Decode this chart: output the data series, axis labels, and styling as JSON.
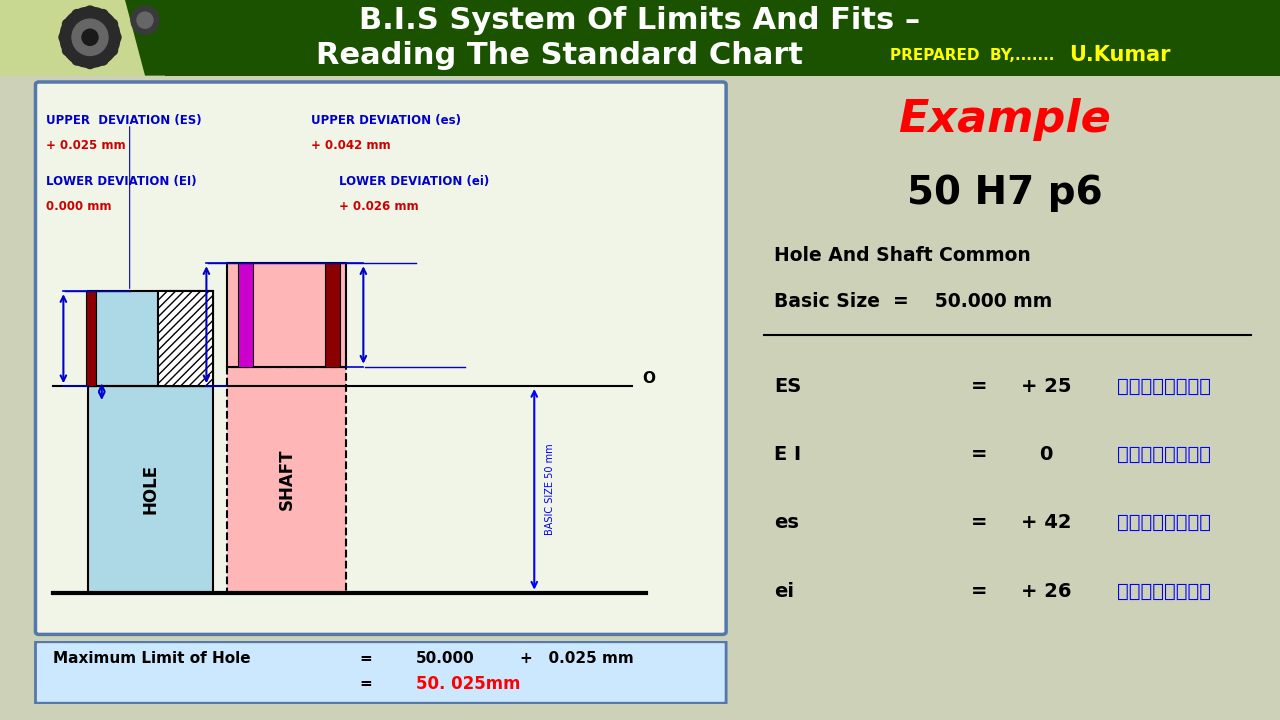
{
  "title_line1": "B.I.S System Of Limits And Fits –",
  "title_line2": "Reading The Standard Chart",
  "prepared_by": "PREPARED  BY,.......",
  "author": "U.Kumar",
  "bg_color": "#cdd1b8",
  "header_bg": "#1a5200",
  "header_light_bg": "#c8d890",
  "header_text_color": "#ffffff",
  "prepared_color": "#ffff00",
  "author_color": "#ffff00",
  "example_title": "Example",
  "example_subtitle": "50 H7 p6",
  "hole_shaft_text": "Hole And Shaft Common",
  "basic_size_text": "Basic Size  =    50.000 mm",
  "rows": [
    {
      "label": "ES",
      "eq": "=",
      "value": "+ 25",
      "unit": "मायक्रोन"
    },
    {
      "label": "E I",
      "eq": "=",
      "value": "0",
      "unit": "मायक्रोन"
    },
    {
      "label": "es",
      "eq": "=",
      "value": "+ 42",
      "unit": "मायक्रोन"
    },
    {
      "label": "ei",
      "eq": "=",
      "value": "+ 26",
      "unit": "मायक्रोन"
    }
  ],
  "diagram_box_bg": "#f0f5e8",
  "hole_color": "#add8e6",
  "shaft_color": "#ffb6b6",
  "dark_red": "#8b0000",
  "magenta": "#cc00cc",
  "annotation_blue": "#0000cc",
  "annotation_red": "#cc0000",
  "bottom_box_bg": "#cce8ff"
}
